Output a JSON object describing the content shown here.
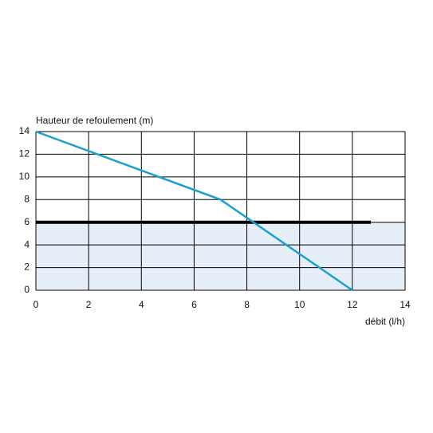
{
  "chart_data": {
    "type": "line",
    "y_label": "Hauteur de refoulement (m)",
    "x_label": "débit (l/h)",
    "xlim": [
      0,
      14
    ],
    "ylim": [
      0,
      14
    ],
    "xticks": [
      0,
      2,
      4,
      6,
      8,
      10,
      12,
      14
    ],
    "yticks": [
      0,
      2,
      4,
      6,
      8,
      10,
      12,
      14
    ],
    "grid": true,
    "series": [
      {
        "color": "#1a9fd0",
        "x": [
          0,
          7,
          12
        ],
        "values": [
          14,
          8,
          0
        ]
      }
    ],
    "reference_line": {
      "y": 6,
      "x": [
        0,
        12.7
      ],
      "color": "#000000"
    },
    "band": {
      "range": [
        0,
        6
      ],
      "color": "#e6eef8"
    }
  }
}
